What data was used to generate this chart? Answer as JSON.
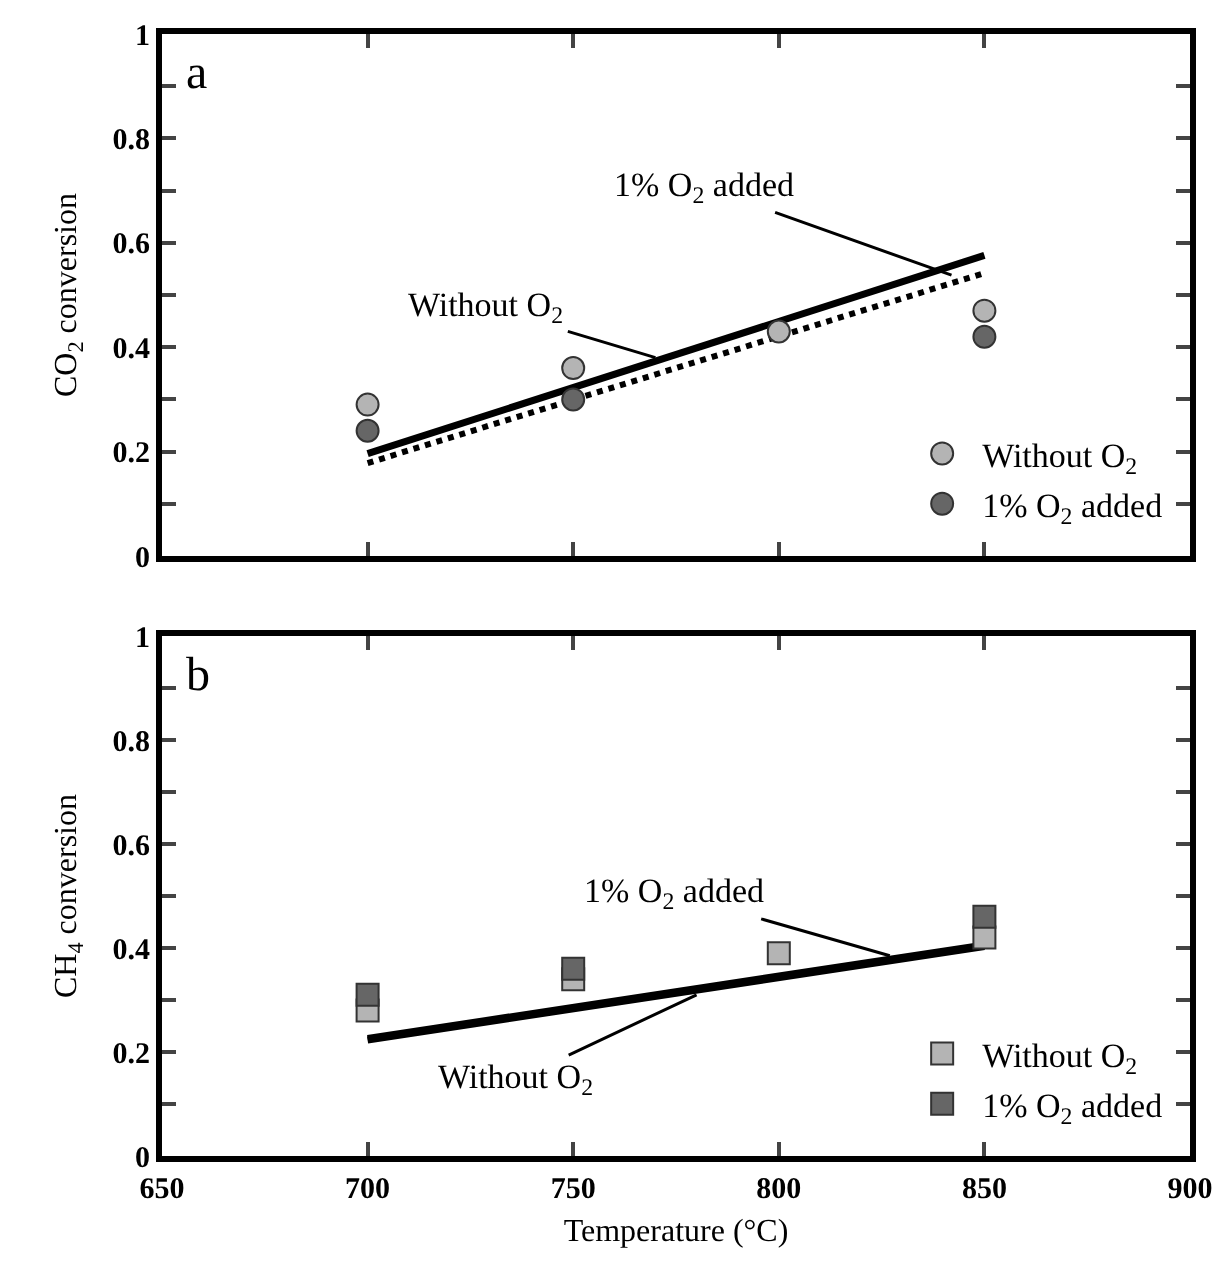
{
  "chart_data": [
    {
      "type": "scatter",
      "x": [
        700,
        750,
        800,
        850
      ],
      "ylabel": "CO$_{2}$ conversion",
      "annotations": [
        "a",
        {
          "text": "1% O$_{2}$ added",
          "x": 842,
          "y": 0.538
        },
        {
          "text": "Without O$_{2}$",
          "x": 770,
          "y": 0.38
        }
      ],
      "series": [
        {
          "name": "Without O$_{2}$",
          "color": "#b4b4b4",
          "marker": "circle",
          "values": [
            0.29,
            0.36,
            0.43,
            0.47
          ]
        },
        {
          "name": "1% O$_{2}$ added",
          "color": "#666666",
          "marker": "circle",
          "values": [
            0.24,
            0.3,
            null,
            0.42
          ]
        },
        {
          "type": "line",
          "color": "#000000",
          "marker": "none",
          "line_style": "solid",
          "values": [
            0.196,
            null,
            null,
            0.576
          ]
        },
        {
          "type": "line",
          "color": "#000000",
          "marker": "none",
          "line_style": "dotted",
          "values": [
            0.178,
            null,
            null,
            0.542
          ]
        }
      ],
      "legend": "bottom right",
      "tick_labels": "y",
      "xlim": [
        650,
        900
      ],
      "xticks": [
        {
          "value": 650,
          "label": null
        },
        {
          "value": 700,
          "label": null
        },
        {
          "value": 750,
          "label": null
        },
        {
          "value": 800,
          "label": null
        },
        {
          "value": 850,
          "label": null
        },
        {
          "value": 900,
          "label": null
        }
      ],
      "ylim": [
        0,
        1
      ],
      "yticks": [
        0,
        {
          "value": 0.1,
          "label": null
        },
        0.2,
        {
          "value": 0.3,
          "label": null
        },
        0.4,
        {
          "value": 0.5,
          "label": null
        },
        0.6,
        {
          "value": 0.7,
          "label": null
        },
        0.8,
        {
          "value": 0.9,
          "label": null
        },
        1
      ]
    },
    {
      "type": "scatter",
      "x": [
        700,
        750,
        800,
        850
      ],
      "xlabel": "Temperature (°C)",
      "ylabel": "CH$_{4}$ conversion",
      "annotations": [
        "b",
        {
          "text": "1% O$_{2}$ added",
          "x": 827,
          "y": 0.385
        },
        {
          "text": "Without O$_{2}$",
          "x": 780,
          "y": 0.31
        }
      ],
      "series": [
        {
          "name": "Without O$_{2}$",
          "color": "#b4b4b4",
          "marker": "square",
          "values": [
            0.28,
            0.34,
            0.39,
            0.42
          ]
        },
        {
          "name": "1% O$_{2}$ added",
          "color": "#666666",
          "marker": "square",
          "values": [
            0.31,
            0.36,
            null,
            0.46
          ]
        },
        {
          "type": "line",
          "color": "#000000",
          "marker": "none",
          "line_style": "solid",
          "values": [
            0.223,
            null,
            null,
            0.403
          ]
        },
        {
          "type": "line",
          "color": "#000000",
          "marker": "none",
          "line_style": "solid",
          "values": [
            0.226,
            null,
            null,
            0.406
          ]
        }
      ],
      "legend": "bottom right",
      "xlim": [
        650,
        900
      ],
      "xticks": [
        650,
        700,
        750,
        800,
        850,
        900
      ],
      "ylim": [
        0,
        1
      ],
      "yticks": [
        0,
        {
          "value": 0.1,
          "label": null
        },
        0.2,
        {
          "value": 0.3,
          "label": null
        },
        0.4,
        {
          "value": 0.5,
          "label": null
        },
        0.6,
        {
          "value": 0.7,
          "label": null
        },
        0.8,
        {
          "value": 0.9,
          "label": null
        },
        1
      ]
    }
  ]
}
